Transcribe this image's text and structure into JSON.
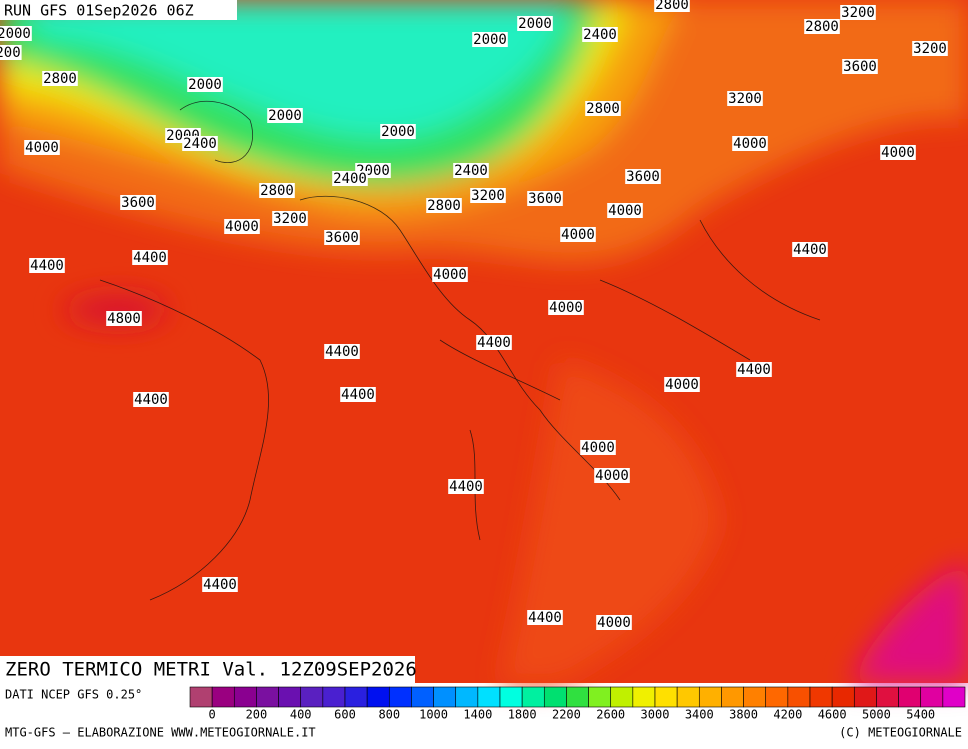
{
  "header": {
    "run": "RUN GFS 01Sep2026 06Z"
  },
  "map": {
    "title": "ZERO TERMICO METRI Val. 12Z09SEP2026",
    "labels": [
      "2000",
      "200",
      "2800",
      "2000",
      "2000",
      "2000",
      "2400",
      "2800",
      "2800",
      "3200",
      "3200",
      "3600",
      "3200",
      "2000",
      "2000",
      "2000",
      "2400",
      "2800",
      "4000",
      "4000",
      "4000",
      "2000",
      "2400",
      "2400",
      "3600",
      "2800",
      "3200",
      "3600",
      "2800",
      "3600",
      "4000",
      "4000",
      "3200",
      "3600",
      "4000",
      "4400",
      "4400",
      "4400",
      "4000",
      "4000",
      "4800",
      "4400",
      "4400",
      "4400",
      "4000",
      "4400",
      "4400",
      "4000",
      "4000",
      "4400",
      "4400",
      "4400",
      "4000"
    ]
  },
  "colorbar": {
    "source": "DATI NCEP GFS 0.25°",
    "colors": [
      "#b04070",
      "#9a0080",
      "#8a0090",
      "#7a10a0",
      "#6a10b0",
      "#5a20c0",
      "#4a20d0",
      "#2a20e0",
      "#0010f0",
      "#0030ff",
      "#0060ff",
      "#0090ff",
      "#00b8ff",
      "#00e0ff",
      "#00ffe0",
      "#00f0a0",
      "#00e070",
      "#30e040",
      "#80f020",
      "#c0f000",
      "#f0f000",
      "#ffe000",
      "#ffc800",
      "#ffb000",
      "#ff9800",
      "#ff8000",
      "#ff6800",
      "#f85000",
      "#f03800",
      "#e82800",
      "#e01818",
      "#e01040",
      "#e00070",
      "#e000a0",
      "#e000c8"
    ],
    "labels": [
      "0",
      "200",
      "400",
      "600",
      "800",
      "1000",
      "1400",
      "1800",
      "2200",
      "2600",
      "3000",
      "3400",
      "3800",
      "4200",
      "4600",
      "5000",
      "5400"
    ]
  },
  "footer": {
    "left": "MTG-GFS — ELABORAZIONE WWW.METEOGIORNALE.IT",
    "right": "(C) METEOGIORNALE"
  }
}
